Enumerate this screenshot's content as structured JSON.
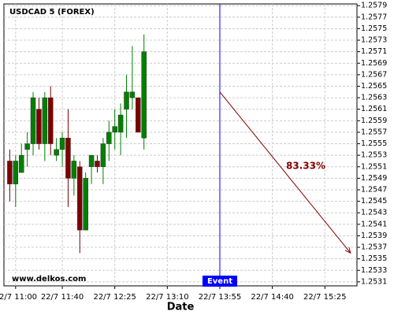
{
  "chart_data": {
    "type": "candlestick",
    "title": "USDCAD 5 (FOREX)",
    "x_label": "Date",
    "watermark": "www.delkos.com",
    "x": [
      -5,
      0,
      5,
      10,
      15,
      20,
      25,
      30,
      35,
      40,
      45,
      50,
      55,
      60,
      65,
      70,
      75,
      80,
      85,
      90,
      95,
      100,
      105,
      110
    ],
    "open": [
      1.2552,
      1.2548,
      1.255,
      1.2554,
      1.2555,
      1.2561,
      1.2555,
      1.2563,
      1.2553,
      1.2554,
      1.2556,
      1.2549,
      1.2551,
      1.254,
      1.2551,
      1.2552,
      1.2551,
      1.2555,
      1.2557,
      1.2557,
      1.2561,
      1.2563,
      1.2563,
      1.2556
    ],
    "high": [
      1.2554,
      1.2553,
      1.2555,
      1.2557,
      1.2564,
      1.2563,
      1.2564,
      1.2565,
      1.2556,
      1.2557,
      1.2561,
      1.2553,
      1.2552,
      1.255,
      1.2553,
      1.2553,
      1.2556,
      1.2559,
      1.2561,
      1.2562,
      1.2567,
      1.2572,
      1.2563,
      1.2574
    ],
    "low": [
      1.2545,
      1.2544,
      1.255,
      1.2551,
      1.2553,
      1.2554,
      1.2552,
      1.2553,
      1.2552,
      1.2551,
      1.2544,
      1.2546,
      1.2536,
      1.254,
      1.2548,
      1.255,
      1.2548,
      1.2552,
      1.2554,
      1.2553,
      1.2556,
      1.2561,
      1.2557,
      1.2554
    ],
    "close": [
      1.2548,
      1.2552,
      1.2553,
      1.2555,
      1.2563,
      1.2555,
      1.2563,
      1.2555,
      1.2554,
      1.2556,
      1.2549,
      1.2552,
      1.254,
      1.2549,
      1.2553,
      1.2551,
      1.2555,
      1.2557,
      1.2558,
      1.256,
      1.2564,
      1.2564,
      1.2557,
      1.2571
    ],
    "up_color": "#008000",
    "down_color": "#800000",
    "xlim": [
      -10,
      292.5
    ],
    "xticks": [
      {
        "value": 0,
        "label": "22/7 11:00"
      },
      {
        "value": 40,
        "label": "22/7 11:40"
      },
      {
        "value": 85,
        "label": "22/7 12:25"
      },
      {
        "value": 130,
        "label": "22/7 13:10"
      },
      {
        "value": 175,
        "label": "22/7 13:55"
      },
      {
        "value": 220,
        "label": "22/7 14:40"
      },
      {
        "value": 265,
        "label": "22/7 15:25"
      }
    ],
    "ylim": [
      1.25303,
      1.25793
    ],
    "yticks": [
      1.2579,
      1.2577,
      1.2575,
      1.2573,
      1.2571,
      1.2569,
      1.2567,
      1.2565,
      1.2563,
      1.2561,
      1.2559,
      1.2557,
      1.2555,
      1.2553,
      1.2551,
      1.2549,
      1.2547,
      1.2545,
      1.2543,
      1.2541,
      1.2539,
      1.2537,
      1.2535,
      1.2533,
      1.2531
    ],
    "grid": true,
    "event": {
      "label": "Event",
      "x": 175,
      "color": "#0000ff"
    },
    "forecast": {
      "x": [
        175,
        287
      ],
      "y": [
        1.2564,
        1.2536
      ],
      "label": "83.33%",
      "color": "#800000"
    }
  }
}
